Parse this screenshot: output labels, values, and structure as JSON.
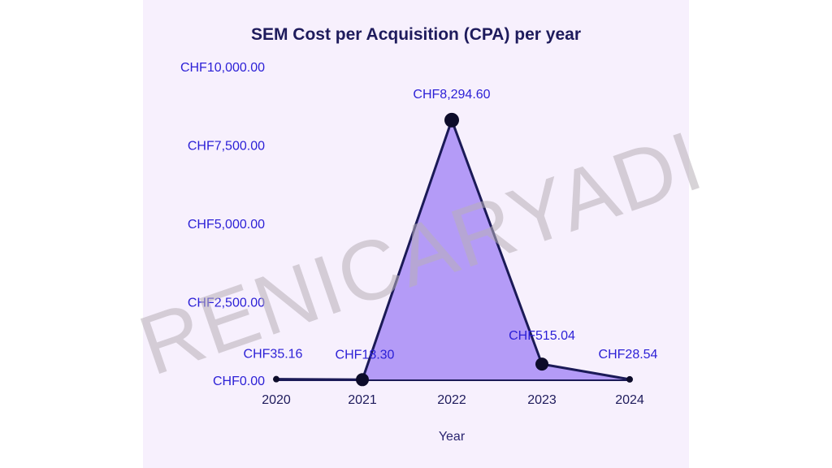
{
  "chart_data": {
    "type": "area",
    "title": "SEM Cost per Acquisition (CPA) per year",
    "xlabel": "Year",
    "ylabel": "",
    "categories": [
      "2020",
      "2021",
      "2022",
      "2023",
      "2024"
    ],
    "values": [
      35.16,
      18.3,
      8294.6,
      515.04,
      28.54
    ],
    "data_labels": [
      "CHF35.16",
      "CHF18.30",
      "CHF8,294.60",
      "CHF515.04",
      "CHF28.54"
    ],
    "ylim": [
      0,
      10000
    ],
    "y_ticks": [
      {
        "value": 0,
        "label": "CHF0.00"
      },
      {
        "value": 2500,
        "label": "CHF2,500.00"
      },
      {
        "value": 5000,
        "label": "CHF5,000.00"
      },
      {
        "value": 7500,
        "label": "CHF7,500.00"
      },
      {
        "value": 10000,
        "label": "CHF10,000.00"
      }
    ],
    "grid": false,
    "legend": "none"
  },
  "colors": {
    "area_fill": "#b49bf7",
    "line": "#1b1a57",
    "marker": "#0d0c2a",
    "title": "#1e1b5c",
    "tick_label": "#2b1fd6",
    "background": "#f7f0fd"
  },
  "watermark": "RENICARYADI"
}
